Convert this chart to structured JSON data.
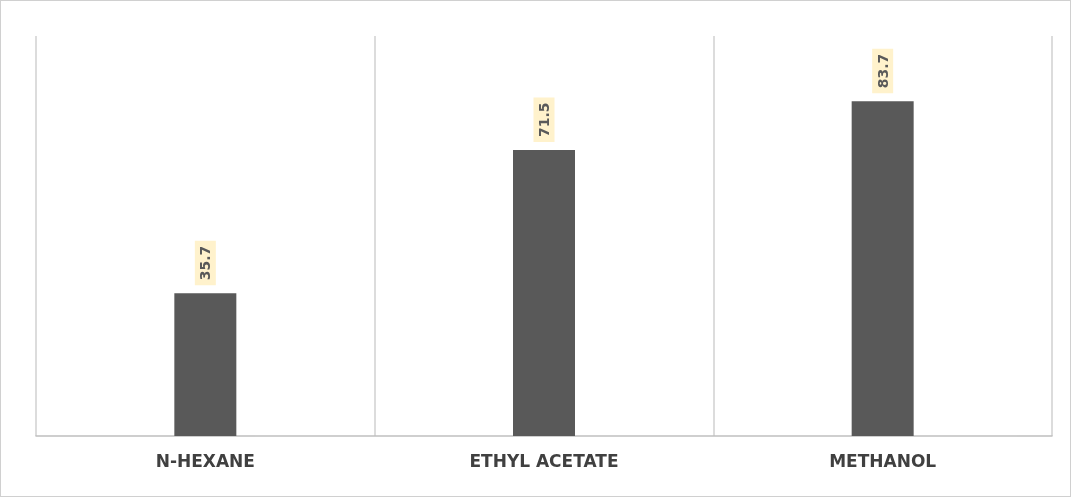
{
  "chart_data": {
    "type": "bar",
    "categories": [
      "N-HEXANE",
      "ETHYL ACETATE",
      "METHANOL"
    ],
    "values": [
      35.7,
      71.5,
      83.7
    ],
    "color": "#595959",
    "ylim": [
      0,
      100
    ],
    "data_labels": true,
    "grid": "x",
    "tick_labels": "x"
  }
}
